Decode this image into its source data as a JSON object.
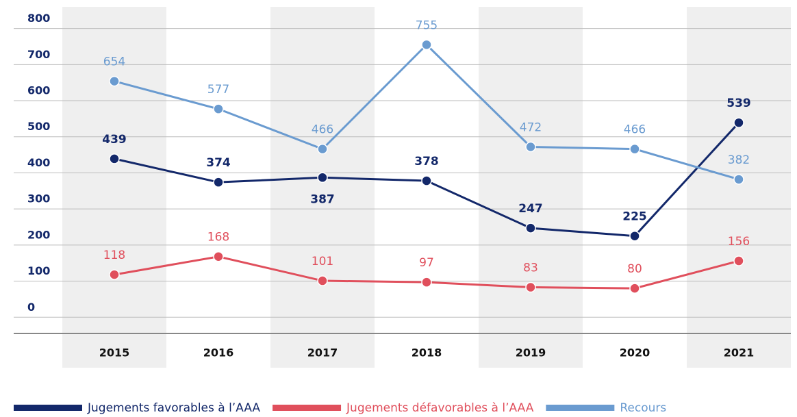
{
  "chart_data": {
    "type": "line",
    "categories": [
      "2015",
      "2016",
      "2017",
      "2018",
      "2019",
      "2020",
      "2021"
    ],
    "series": [
      {
        "name": "Jugements favorables à l’AAA",
        "color": "#13286a",
        "values": [
          439,
          374,
          387,
          378,
          247,
          225,
          539
        ]
      },
      {
        "name": "Jugements défavorables à l’AAA",
        "color": "#e04f5c",
        "values": [
          118,
          168,
          101,
          97,
          83,
          80,
          156
        ]
      },
      {
        "name": "Recours",
        "color": "#6a9bd0",
        "values": [
          654,
          577,
          466,
          755,
          472,
          466,
          382
        ]
      }
    ],
    "ylim": [
      -45,
      860
    ],
    "yticks": [
      0,
      100,
      200,
      300,
      400,
      500,
      600,
      700,
      800
    ],
    "grid": true,
    "legend": "bottom"
  }
}
